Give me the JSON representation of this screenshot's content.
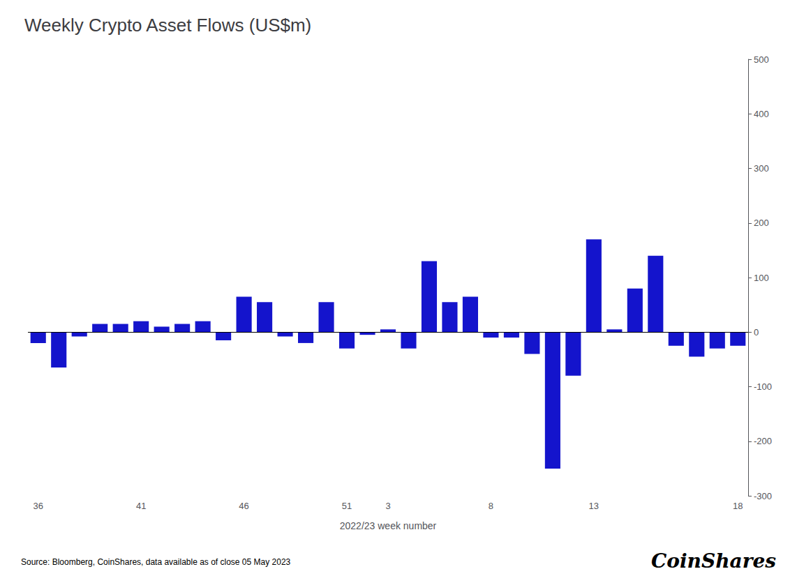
{
  "chart_data": {
    "type": "bar",
    "title": "Weekly Crypto Asset Flows (US$m)",
    "xlabel": "2022/23 week number",
    "annotations": [
      "Source: Bloomberg, CoinShares, data available as of close 05 May 2023",
      "CoinShares"
    ],
    "categories": [
      "36",
      null,
      null,
      null,
      null,
      "41",
      null,
      null,
      null,
      null,
      "46",
      null,
      null,
      null,
      null,
      "51",
      null,
      "3",
      null,
      null,
      null,
      null,
      "8",
      null,
      null,
      null,
      null,
      "13",
      null,
      null,
      null,
      null,
      null,
      null,
      "18"
    ],
    "values": [
      -20,
      -65,
      -8,
      15,
      15,
      20,
      10,
      15,
      20,
      -15,
      65,
      55,
      -8,
      -20,
      55,
      -30,
      -5,
      5,
      -30,
      130,
      55,
      65,
      -10,
      -10,
      -40,
      -250,
      -80,
      170,
      5,
      80,
      140,
      -25,
      -45,
      -30,
      -25
    ],
    "color": "#1414cc",
    "ylim": [
      -300,
      500
    ],
    "yticks": [
      -300,
      -200,
      -100,
      0,
      100,
      200,
      300,
      400,
      500
    ],
    "grid": false
  }
}
